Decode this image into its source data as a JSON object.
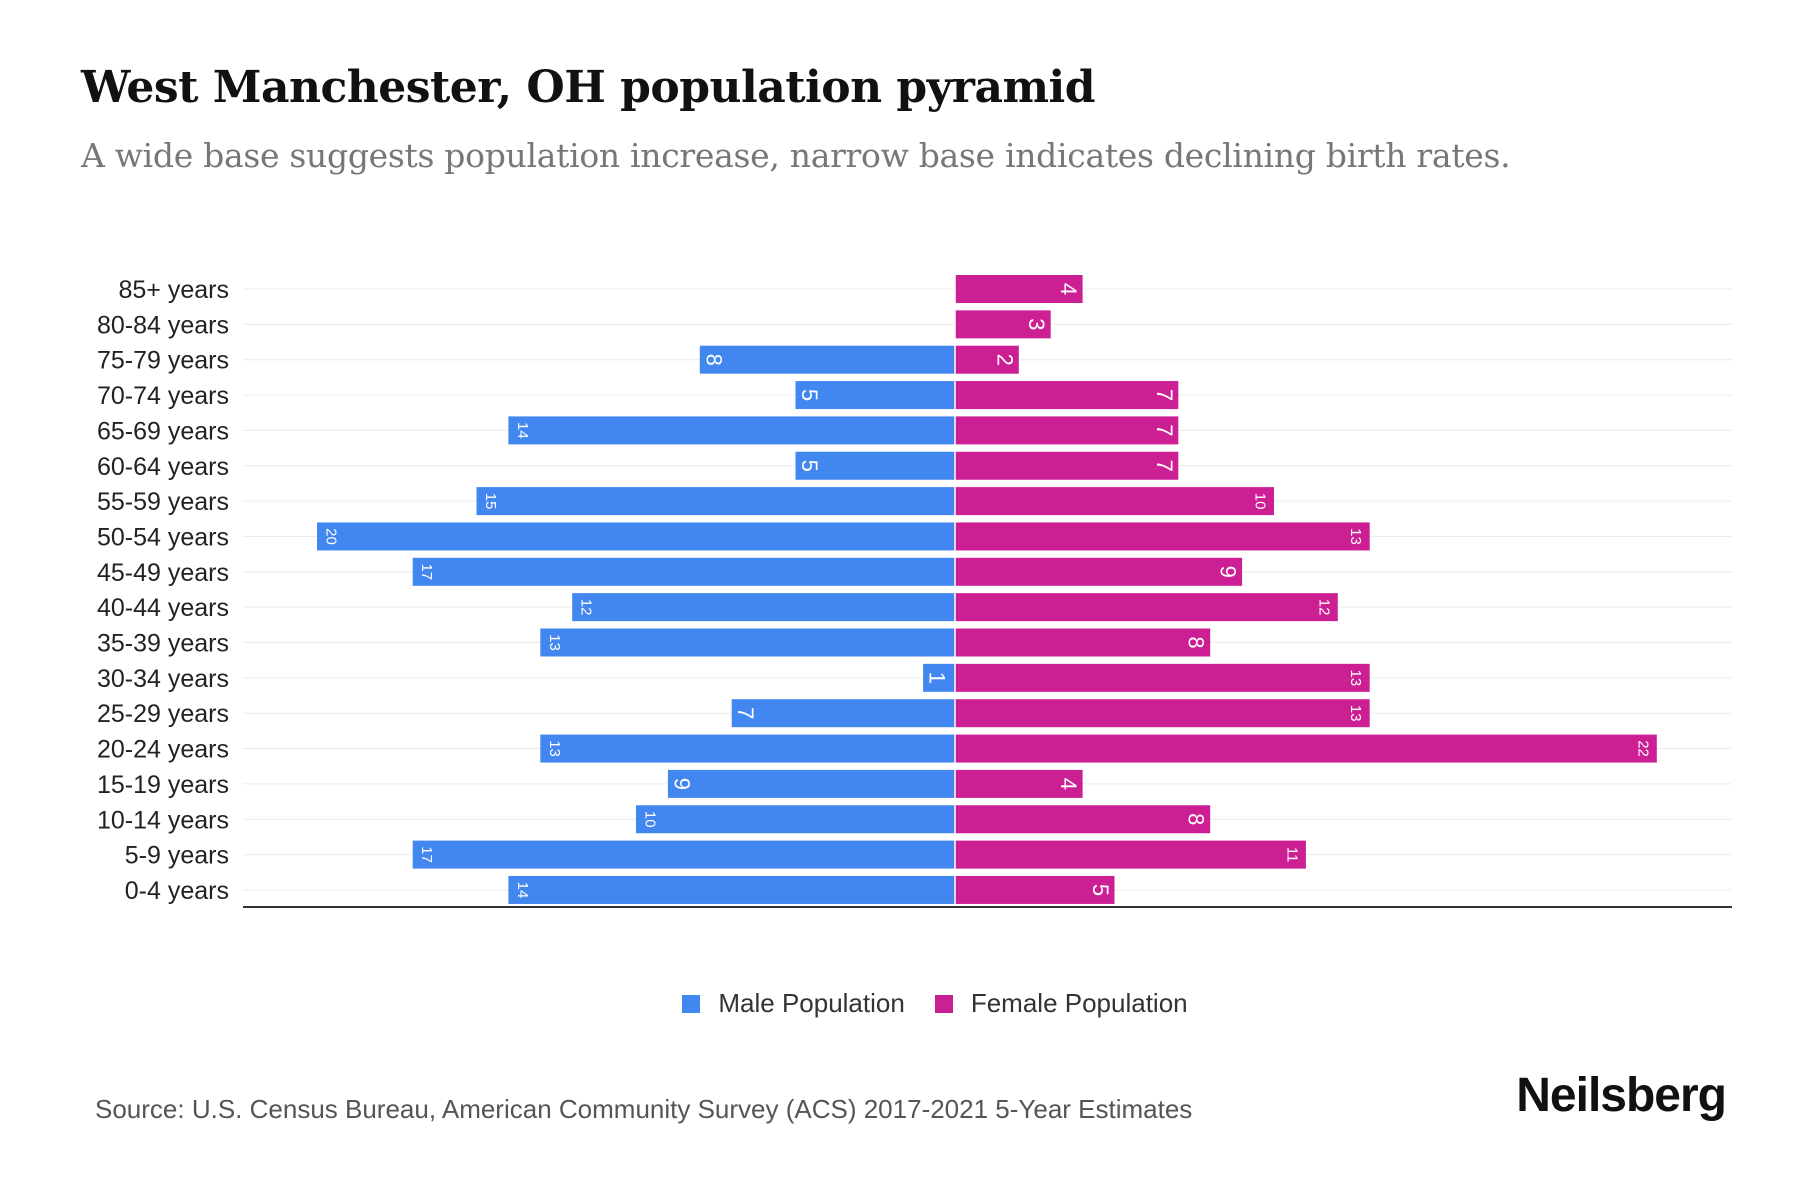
{
  "title": "West Manchester, OH population pyramid",
  "subtitle": "A wide base suggests population increase, narrow base indicates declining birth rates.",
  "source": "Source: U.S. Census Bureau, American Community Survey (ACS) 2017-2021 5-Year Estimates",
  "logo": "Neilsberg",
  "colors": {
    "male": "#4287f0",
    "female": "#cc1f94"
  },
  "chart_data": {
    "type": "bar",
    "orientation": "horizontal-pyramid",
    "title": "West Manchester, OH population pyramid",
    "categories": [
      "85+ years",
      "80-84 years",
      "75-79 years",
      "70-74 years",
      "65-69 years",
      "60-64 years",
      "55-59 years",
      "50-54 years",
      "45-49 years",
      "40-44 years",
      "35-39 years",
      "30-34 years",
      "25-29 years",
      "20-24 years",
      "15-19 years",
      "10-14 years",
      "5-9 years",
      "0-4 years"
    ],
    "series": [
      {
        "name": "Male Population",
        "values": [
          0,
          0,
          8,
          5,
          14,
          5,
          15,
          20,
          17,
          12,
          13,
          1,
          7,
          13,
          9,
          10,
          17,
          14
        ]
      },
      {
        "name": "Female Population",
        "values": [
          4,
          3,
          2,
          7,
          7,
          7,
          10,
          13,
          9,
          12,
          8,
          13,
          13,
          22,
          4,
          8,
          11,
          5
        ]
      }
    ],
    "xlim": [
      -20.3,
      24
    ],
    "grid": true,
    "legend_position": "bottom-center"
  }
}
